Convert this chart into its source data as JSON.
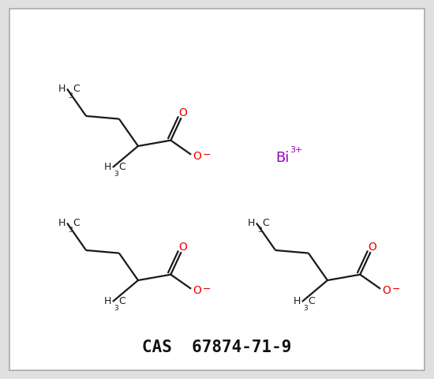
{
  "background_color": "#e0e0e0",
  "inner_background": "#ffffff",
  "border_color": "#aaaaaa",
  "line_color": "#1a1a1a",
  "oxygen_color": "#ee0000",
  "bi_color": "#9900bb",
  "cas_text": "CAS  67874-71-9",
  "cas_fontsize": 15,
  "cas_color": "#111111",
  "line_width": 1.6,
  "figsize": [
    5.5,
    4.8
  ],
  "dpi": 100,
  "xlim": [
    0,
    550
  ],
  "ylim": [
    0,
    480
  ]
}
